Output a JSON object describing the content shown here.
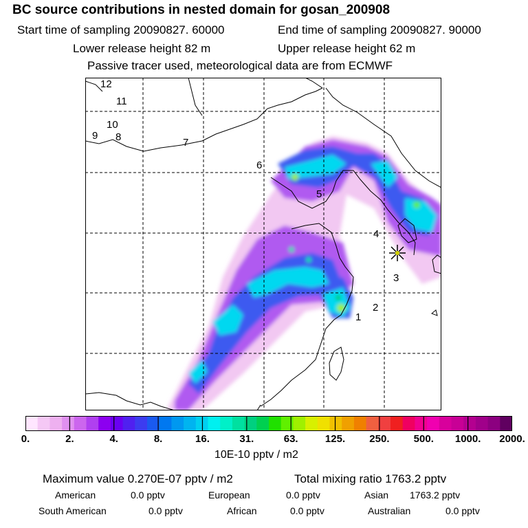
{
  "title": "BC  source contributions in nested domain for gosan_200908",
  "header": {
    "start": "Start time of sampling 20090827. 60000",
    "end": "End time of sampling 20090827. 90000",
    "lower": "Lower release height   82 m",
    "upper": "Upper release height   62 m",
    "note": "Passive tracer used, meteorological data are from ECMWF"
  },
  "map": {
    "labels": [
      "1",
      "2",
      "3",
      "4",
      "5",
      "6",
      "7",
      "8",
      "9",
      "10",
      "11",
      "12"
    ],
    "receptor_icon": "star-marker-icon"
  },
  "colorbar": {
    "ticks": [
      "0.",
      "2.",
      "4.",
      "8.",
      "16.",
      "31.",
      "63.",
      "125.",
      "250.",
      "500.",
      "1000.",
      "2000."
    ],
    "unit": "10E-10 pptv / m2",
    "colors": [
      "#ffe6ff",
      "#f5c8f5",
      "#eeb0f0",
      "#e090f0",
      "#cc66ee",
      "#b040f0",
      "#8c00f0",
      "#6a00f2",
      "#5020f0",
      "#3c3cf0",
      "#1a5af0",
      "#0078f0",
      "#0098f0",
      "#00b4f0",
      "#00d0f0",
      "#00f0f0",
      "#00f0c8",
      "#00e0a0",
      "#00d080",
      "#00d050",
      "#20e000",
      "#60f000",
      "#a0f000",
      "#d8f000",
      "#f0e000",
      "#f0c000",
      "#f0a000",
      "#f08000",
      "#f06040",
      "#f04040",
      "#f02020",
      "#f00060",
      "#f00090",
      "#f000b0",
      "#d8009c",
      "#c80096",
      "#b40090",
      "#a0008a",
      "#8c0080",
      "#600060"
    ]
  },
  "summary": {
    "max": "Maximum value  0.270E-07 pptv / m2",
    "total": "Total mixing ratio     1763.2 pptv",
    "american_l": "American",
    "american_v": "0.0 pptv",
    "european_l": "European",
    "european_v": "0.0 pptv",
    "asian_l": "Asian",
    "asian_v": "1763.2 pptv",
    "southam_l": "South American",
    "southam_v": "0.0 pptv",
    "african_l": "African",
    "african_v": "0.0 pptv",
    "australian_l": "Australian",
    "australian_v": "0.0 pptv"
  }
}
